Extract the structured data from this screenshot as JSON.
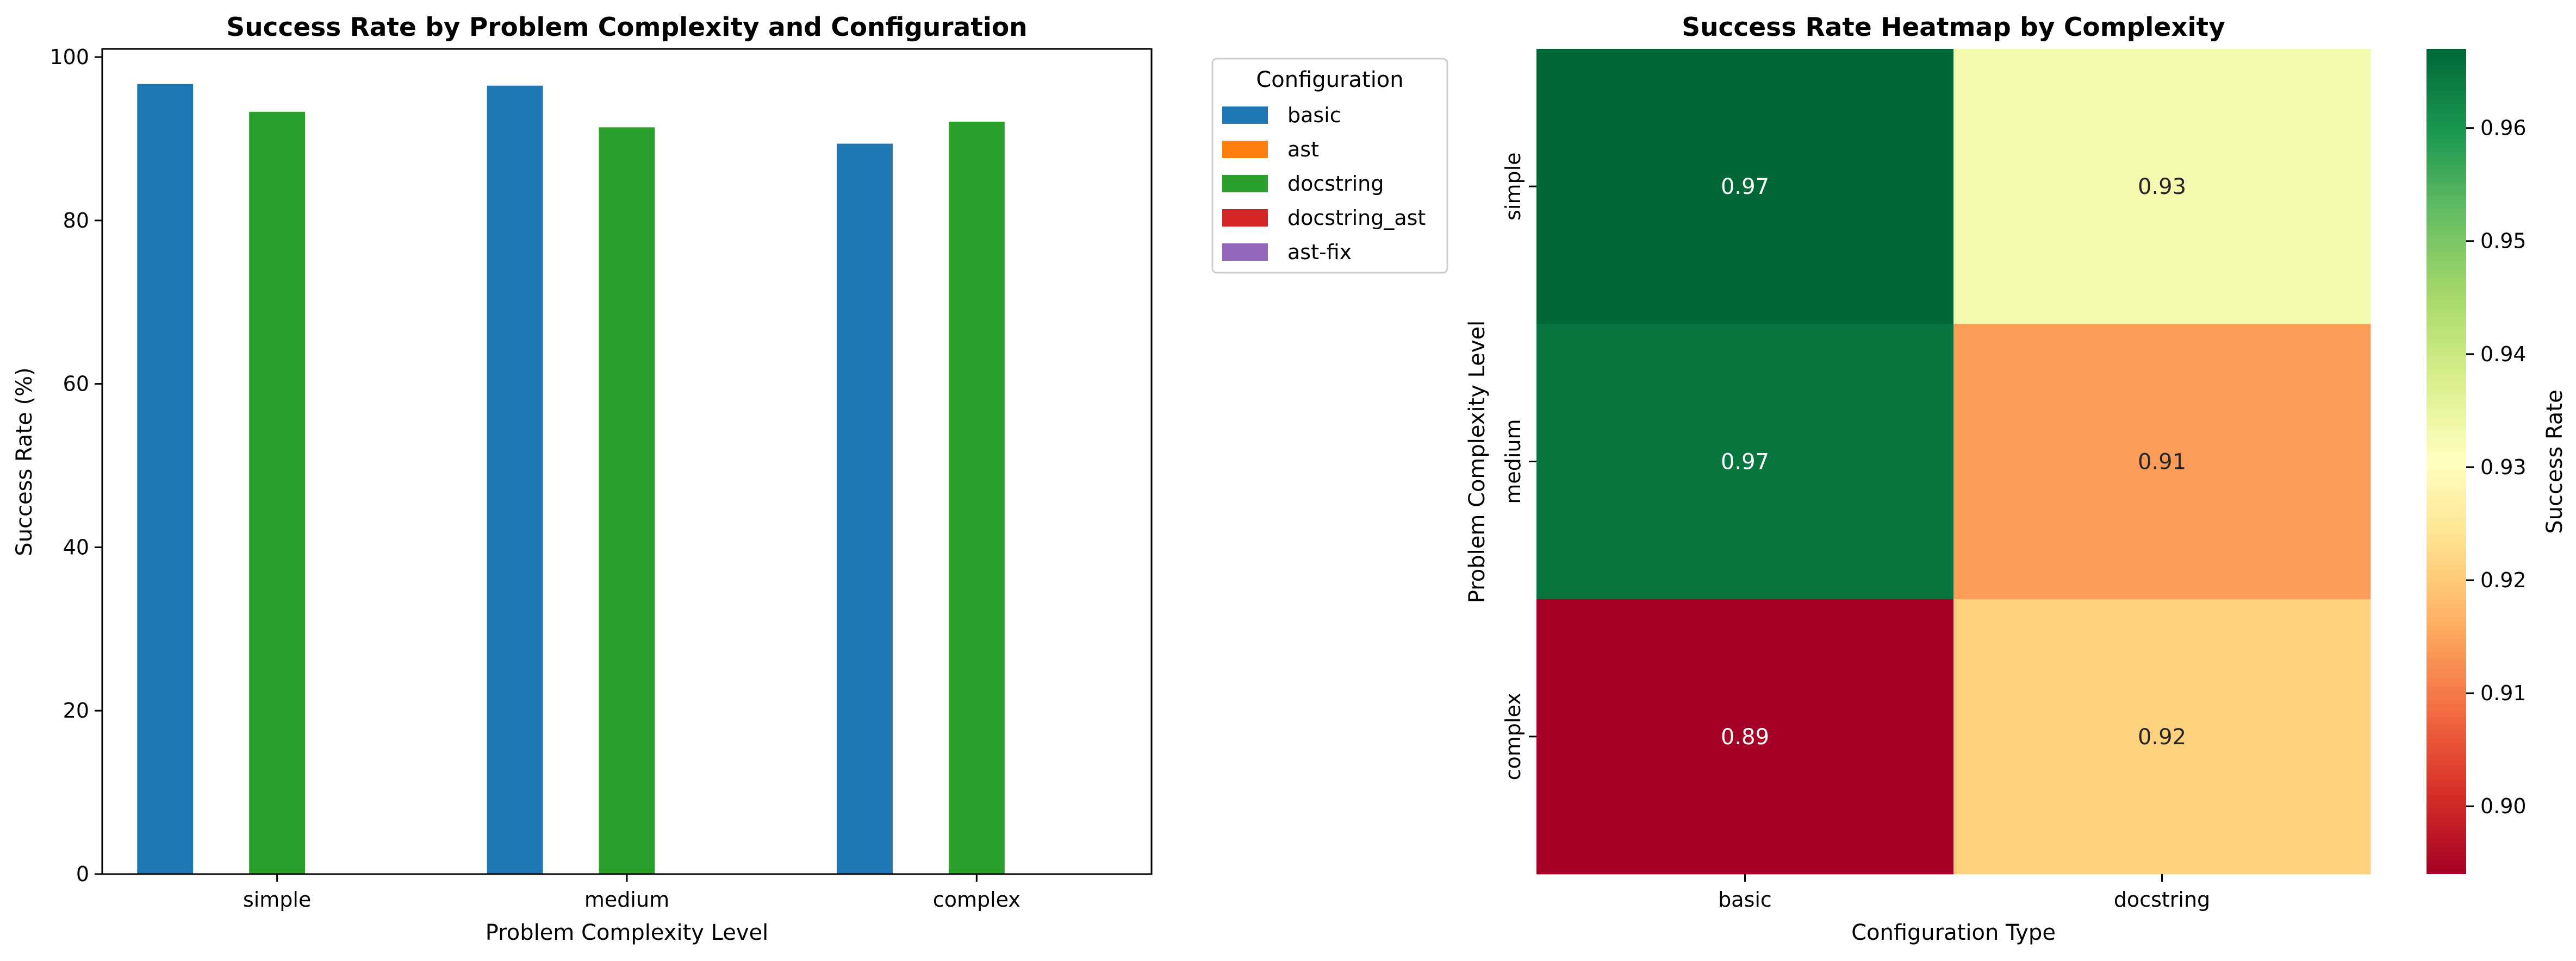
{
  "chart_data": [
    {
      "type": "bar",
      "title": "Success Rate by Problem Complexity and Configuration",
      "xlabel": "Problem Complexity Level",
      "ylabel": "Success Rate (%)",
      "categories": [
        "simple",
        "medium",
        "complex"
      ],
      "ylim": [
        0,
        101
      ],
      "yticks": [
        0,
        20,
        40,
        60,
        80,
        100
      ],
      "legend": {
        "title": "Configuration",
        "placement": "outside upper right"
      },
      "series": [
        {
          "name": "basic",
          "color": "#1f77b4",
          "values": [
            96.7,
            96.5,
            89.4
          ]
        },
        {
          "name": "ast",
          "color": "#ff7f0e",
          "values": [
            null,
            null,
            null
          ]
        },
        {
          "name": "docstring",
          "color": "#2ca02c",
          "values": [
            93.3,
            91.4,
            92.1
          ]
        },
        {
          "name": "docstring_ast",
          "color": "#d62728",
          "values": [
            null,
            null,
            null
          ]
        },
        {
          "name": "ast-fix",
          "color": "#9467bd",
          "values": [
            null,
            null,
            null
          ]
        }
      ],
      "grid": false
    },
    {
      "type": "heatmap",
      "title": "Success Rate Heatmap by Complexity",
      "xlabel": "Configuration Type",
      "ylabel": "Problem Complexity Level",
      "x_categories": [
        "basic",
        "docstring"
      ],
      "y_categories": [
        "simple",
        "medium",
        "complex"
      ],
      "values": [
        [
          0.967,
          0.933
        ],
        [
          0.965,
          0.914
        ],
        [
          0.894,
          0.921
        ]
      ],
      "cell_labels": [
        [
          "0.97",
          "0.93"
        ],
        [
          "0.97",
          "0.91"
        ],
        [
          "0.89",
          "0.92"
        ]
      ],
      "colormap": "RdYlGn",
      "colorbar": {
        "label": "Success Rate",
        "range": [
          0.894,
          0.967
        ],
        "ticks": [
          0.9,
          0.91,
          0.92,
          0.93,
          0.94,
          0.95,
          0.96
        ],
        "tick_labels": [
          "0.90",
          "0.91",
          "0.92",
          "0.93",
          "0.94",
          "0.95",
          "0.96"
        ]
      }
    }
  ]
}
